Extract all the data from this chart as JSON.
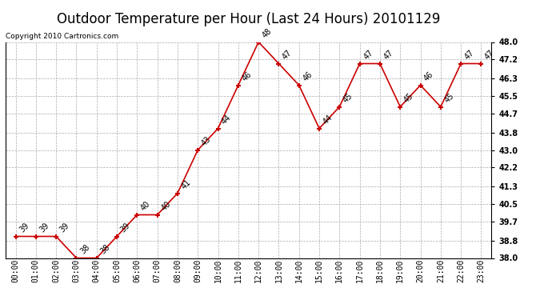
{
  "title": "Outdoor Temperature per Hour (Last 24 Hours) 20101129",
  "copyright": "Copyright 2010 Cartronics.com",
  "hours": [
    "00:00",
    "01:00",
    "02:00",
    "03:00",
    "04:00",
    "05:00",
    "06:00",
    "07:00",
    "08:00",
    "09:00",
    "10:00",
    "11:00",
    "12:00",
    "13:00",
    "14:00",
    "15:00",
    "16:00",
    "17:00",
    "18:00",
    "19:00",
    "20:00",
    "21:00",
    "22:00",
    "23:00"
  ],
  "values": [
    39,
    39,
    39,
    38,
    38,
    39,
    40,
    40,
    41,
    43,
    44,
    46,
    48,
    47,
    46,
    44,
    45,
    47,
    47,
    45,
    46,
    45,
    47,
    47
  ],
  "line_color": "#cc0000",
  "marker_color": "#cc0000",
  "bg_color": "#ffffff",
  "grid_color": "#aaaaaa",
  "ylim_min": 38.0,
  "ylim_max": 48.0,
  "yticks": [
    38.0,
    38.8,
    39.7,
    40.5,
    41.3,
    42.2,
    43.0,
    43.8,
    44.7,
    45.5,
    46.3,
    47.2,
    48.0
  ],
  "title_fontsize": 12,
  "label_fontsize": 7,
  "annot_fontsize": 7,
  "copyright_fontsize": 6.5
}
